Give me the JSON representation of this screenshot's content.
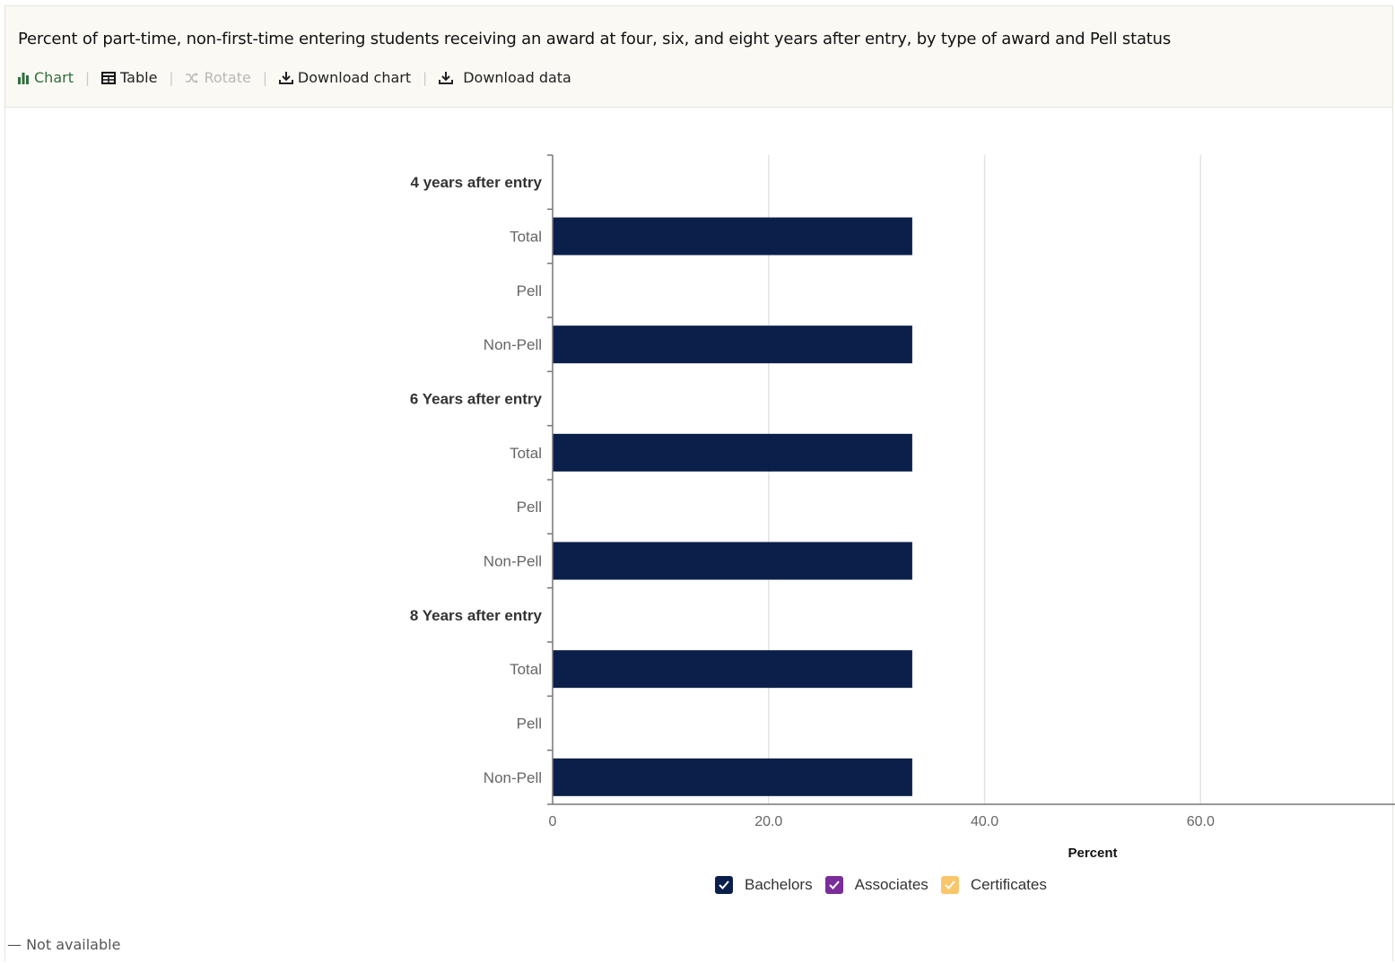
{
  "title": "Percent of part-time, non-first-time entering students receiving an award at four, six, and eight years after entry, by type of award and Pell status",
  "toolbar": {
    "chart": "Chart",
    "table": "Table",
    "rotate": "Rotate",
    "download_chart": "Download chart",
    "download_data": "Download data",
    "separator": "|"
  },
  "note": "— Not available",
  "colors": {
    "bachelors": "#0b1f4b",
    "associates": "#7b2d9b",
    "certificates": "#f9c66b",
    "active_tab": "#2f6e3b"
  },
  "icons": {
    "chart": "bar-chart-icon",
    "table": "table-icon",
    "rotate": "shuffle-icon",
    "download_chart": "download-icon",
    "download_data": "download-icon",
    "legend": "checkmark-icon"
  },
  "chart_data": {
    "type": "bar",
    "orientation": "horizontal",
    "categories": [
      {
        "label": "4 years after entry",
        "group": true
      },
      {
        "label": "Total",
        "group": false
      },
      {
        "label": "Pell",
        "group": false
      },
      {
        "label": "Non-Pell",
        "group": false
      },
      {
        "label": "6 Years after entry",
        "group": true
      },
      {
        "label": "Total",
        "group": false
      },
      {
        "label": "Pell",
        "group": false
      },
      {
        "label": "Non-Pell",
        "group": false
      },
      {
        "label": "8 Years after entry",
        "group": true
      },
      {
        "label": "Total",
        "group": false
      },
      {
        "label": "Pell",
        "group": false
      },
      {
        "label": "Non-Pell",
        "group": false
      }
    ],
    "series": [
      {
        "name": "Bachelors",
        "values": [
          null,
          33.3,
          null,
          33.3,
          null,
          33.3,
          null,
          33.3,
          null,
          33.3,
          null,
          33.3
        ]
      },
      {
        "name": "Associates",
        "values": [
          null,
          null,
          null,
          null,
          null,
          null,
          null,
          null,
          null,
          null,
          null,
          null
        ]
      },
      {
        "name": "Certificates",
        "values": [
          null,
          null,
          null,
          null,
          null,
          null,
          null,
          null,
          null,
          null,
          null,
          null
        ]
      }
    ],
    "xlabel": "Percent",
    "xlim": [
      0,
      78
    ],
    "ticks": [
      0,
      20,
      40,
      60
    ],
    "tick_labels": [
      "0",
      "20.0",
      "40.0",
      "60.0"
    ],
    "grid": true,
    "legend": [
      "Bachelors",
      "Associates",
      "Certificates"
    ],
    "legend_position": "bottom"
  }
}
